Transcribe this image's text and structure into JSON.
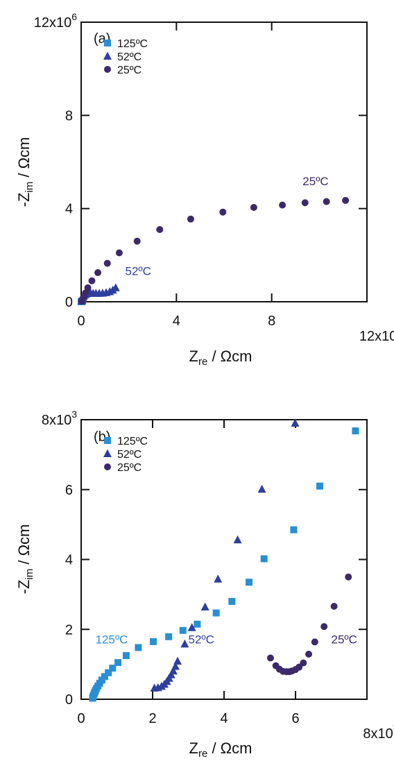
{
  "chart_data": [
    {
      "type": "scatter",
      "panel_label": "(a)",
      "xlabel": "Z",
      "xlabel_sub": "re",
      "xlabel_unit": " / Ωcm",
      "ylabel": "-Z",
      "ylabel_sub": "im",
      "ylabel_unit": " / Ωcm",
      "xlim": [
        0,
        12000000
      ],
      "ylim": [
        0,
        12000000
      ],
      "x_ticks": [
        "0",
        "4",
        "8",
        "12x10"
      ],
      "x_tick_values": [
        0,
        4000000,
        8000000,
        12000000
      ],
      "x_exp": "6",
      "y_ticks": [
        "0",
        "4",
        "8",
        "12x10"
      ],
      "y_tick_values": [
        0,
        4000000,
        8000000,
        12000000
      ],
      "y_exp": "6",
      "legend_position": "top-left",
      "series": [
        {
          "name": "125ºC",
          "marker": "square",
          "color": "#2a8fd1",
          "x": [
            5000,
            10000,
            20000,
            30000,
            45000,
            60000
          ],
          "y": [
            2000,
            6000,
            12000,
            18000,
            25000,
            30000
          ]
        },
        {
          "name": "52ºC",
          "marker": "triangle",
          "color": "#2f3f9e",
          "x": [
            20000,
            40000,
            70000,
            100000,
            140000,
            190000,
            250000,
            320000,
            400000,
            500000,
            620000,
            760000,
            900000,
            1050000,
            1200000,
            1330000,
            1450000
          ],
          "y": [
            30000,
            80000,
            150000,
            220000,
            280000,
            320000,
            350000,
            360000,
            360000,
            360000,
            360000,
            360000,
            370000,
            390000,
            430000,
            500000,
            600000
          ]
        },
        {
          "name": "25ºC",
          "marker": "circle",
          "color": "#3c2a68",
          "x": [
            15000,
            50000,
            100000,
            180000,
            280000,
            450000,
            700000,
            1100000,
            1600000,
            2350000,
            3300000,
            4600000,
            5950000,
            7250000,
            8450000,
            9400000,
            10300000,
            11100000
          ],
          "y": [
            30000,
            100000,
            200000,
            380000,
            600000,
            900000,
            1250000,
            1650000,
            2100000,
            2600000,
            3100000,
            3550000,
            3850000,
            4050000,
            4150000,
            4250000,
            4300000,
            4350000
          ]
        }
      ],
      "annotations": [
        {
          "text": "25ºC",
          "x": 9300000,
          "y": 5000000,
          "color": "#3c2a68"
        },
        {
          "text": "52ºC",
          "x": 1850000,
          "y": 1150000,
          "color": "#2f3f9e"
        }
      ]
    },
    {
      "type": "scatter",
      "panel_label": "(b)",
      "xlabel": "Z",
      "xlabel_sub": "re",
      "xlabel_unit": " / Ωcm",
      "ylabel": "-Z",
      "ylabel_sub": "im",
      "ylabel_unit": " / Ωcm",
      "xlim": [
        0,
        8000
      ],
      "ylim": [
        0,
        8000
      ],
      "x_ticks": [
        "0",
        "2",
        "4",
        "6",
        "8x10"
      ],
      "x_tick_values": [
        0,
        2000,
        4000,
        6000,
        8000
      ],
      "x_exp": "3",
      "y_ticks": [
        "0",
        "2",
        "4",
        "6",
        "8x10"
      ],
      "y_tick_values": [
        0,
        2000,
        4000,
        6000,
        8000
      ],
      "y_exp": "3",
      "legend_position": "top-left",
      "series": [
        {
          "name": "125ºC",
          "marker": "square",
          "color": "#2a8fd1",
          "x": [
            320,
            330,
            340,
            360,
            380,
            400,
            430,
            470,
            520,
            580,
            660,
            760,
            880,
            1030,
            1260,
            1600,
            2020,
            2450,
            2850,
            3250,
            3780,
            4220,
            4700,
            5120,
            5950,
            6680,
            7680
          ],
          "y": [
            30,
            60,
            100,
            150,
            200,
            250,
            310,
            380,
            460,
            550,
            650,
            760,
            890,
            1050,
            1250,
            1480,
            1650,
            1790,
            1970,
            2150,
            2470,
            2800,
            3350,
            4020,
            4850,
            6100,
            7680
          ]
        },
        {
          "name": "52ºC",
          "marker": "triangle",
          "color": "#2f3f9e",
          "x": [
            2050,
            2150,
            2250,
            2330,
            2400,
            2460,
            2520,
            2580,
            2640,
            2700,
            2900,
            3100,
            3470,
            3830,
            4380,
            5060,
            5990
          ],
          "y": [
            320,
            330,
            370,
            430,
            510,
            600,
            700,
            810,
            940,
            1090,
            1580,
            2050,
            2640,
            3440,
            4560,
            6010,
            7900
          ]
        },
        {
          "name": "25ºC",
          "marker": "circle",
          "color": "#3c2a68",
          "x": [
            5300,
            5450,
            5550,
            5650,
            5750,
            5830,
            5900,
            6000,
            6100,
            6220,
            6370,
            6540,
            6800,
            7080,
            7480
          ],
          "y": [
            1180,
            960,
            860,
            800,
            790,
            790,
            810,
            850,
            920,
            1040,
            1290,
            1640,
            2080,
            2660,
            3500
          ]
        }
      ],
      "annotations": [
        {
          "text": "125ºC",
          "x": 400,
          "y": 1600,
          "color": "#2a8fd1"
        },
        {
          "text": "52ºC",
          "x": 3000,
          "y": 1600,
          "color": "#2f3f9e"
        },
        {
          "text": "25ºC",
          "x": 7000,
          "y": 1600,
          "color": "#3c2a68"
        }
      ]
    }
  ]
}
